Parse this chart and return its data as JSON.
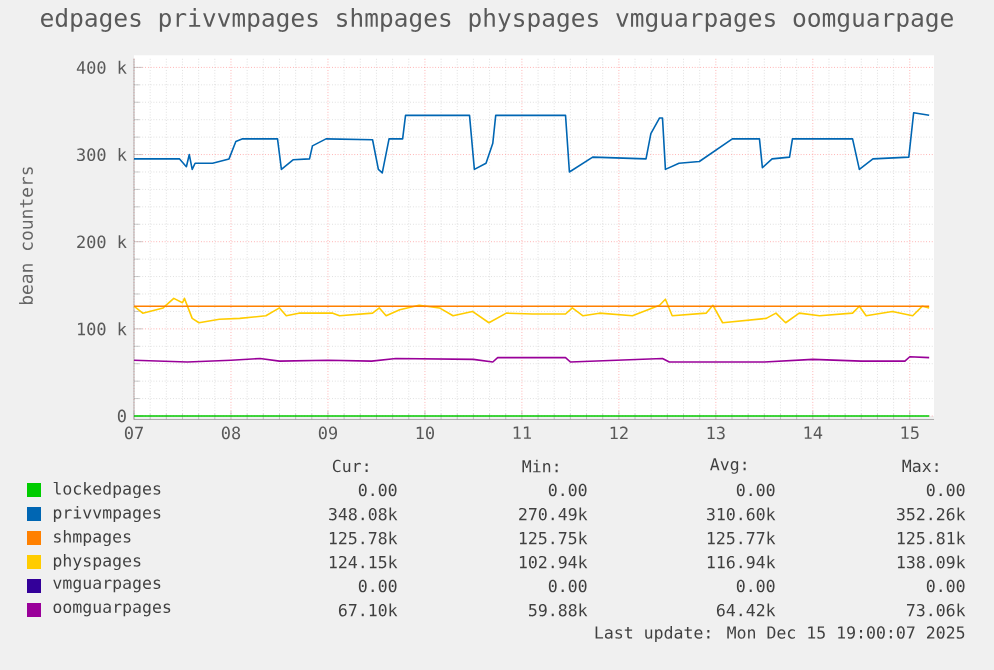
{
  "chart_data": {
    "type": "line",
    "title": "edpages privvmpages shmpages physpages vmguarpages oomguarpage",
    "ylabel": "bean counters",
    "xlim": [
      7,
      15.25
    ],
    "xticks": [
      {
        "value": 7,
        "label": "07"
      },
      {
        "value": 8,
        "label": "08"
      },
      {
        "value": 9,
        "label": "09"
      },
      {
        "value": 10,
        "label": "10"
      },
      {
        "value": 11,
        "label": "11"
      },
      {
        "value": 12,
        "label": "12"
      },
      {
        "value": 13,
        "label": "13"
      },
      {
        "value": 14,
        "label": "14"
      },
      {
        "value": 15,
        "label": "15"
      }
    ],
    "ylim": [
      -4000,
      410000
    ],
    "yticks": [
      0,
      {
        "value": 100000,
        "label": "100 k"
      },
      {
        "value": 200000,
        "label": "200 k"
      },
      {
        "value": 300000,
        "label": "300 k"
      },
      {
        "value": 400000,
        "label": "400 k"
      }
    ],
    "grid": true,
    "legend": "bottom",
    "series": [
      {
        "name": "lockedpages",
        "color": "#00cc00",
        "x": [
          7.0,
          15.2
        ],
        "values": [
          0,
          0
        ]
      },
      {
        "name": "privvmpages",
        "color": "#0066b3",
        "x": [
          7.0,
          7.47,
          7.54,
          7.57,
          7.6,
          7.63,
          7.81,
          7.98,
          8.05,
          8.12,
          8.48,
          8.52,
          8.64,
          8.81,
          8.84,
          8.98,
          9.46,
          9.52,
          9.56,
          9.63,
          9.77,
          9.8,
          10.46,
          10.51,
          10.63,
          10.7,
          10.73,
          11.45,
          11.49,
          11.73,
          12.28,
          12.33,
          12.42,
          12.45,
          12.48,
          12.62,
          12.83,
          13.17,
          13.45,
          13.48,
          13.58,
          13.76,
          13.79,
          14.41,
          14.48,
          14.62,
          14.99,
          15.04,
          15.2
        ],
        "values": [
          295000,
          295000,
          286000,
          300000,
          283000,
          290000,
          290000,
          295000,
          315000,
          318000,
          318000,
          283000,
          294000,
          295000,
          310000,
          318000,
          317000,
          283000,
          279000,
          318000,
          318000,
          345000,
          345000,
          283000,
          290000,
          313000,
          345000,
          345000,
          280000,
          297000,
          295000,
          324000,
          342000,
          342000,
          283000,
          290000,
          292000,
          318000,
          318000,
          285000,
          295000,
          297000,
          318000,
          318000,
          283000,
          295000,
          297000,
          348000,
          345000
        ]
      },
      {
        "name": "shmpages",
        "color": "#ff8000",
        "x": [
          7.0,
          15.2
        ],
        "values": [
          126000,
          126000
        ]
      },
      {
        "name": "physpages",
        "color": "#ffcc00",
        "x": [
          7.0,
          7.09,
          7.3,
          7.41,
          7.5,
          7.52,
          7.6,
          7.67,
          7.88,
          8.09,
          8.36,
          8.5,
          8.57,
          8.7,
          9.05,
          9.12,
          9.46,
          9.53,
          9.6,
          9.74,
          9.94,
          10.15,
          10.29,
          10.49,
          10.66,
          10.84,
          11.11,
          11.45,
          11.52,
          11.63,
          11.8,
          12.14,
          12.42,
          12.48,
          12.55,
          12.9,
          12.97,
          13.07,
          13.52,
          13.62,
          13.72,
          13.86,
          14.07,
          14.41,
          14.48,
          14.55,
          14.82,
          15.03,
          15.13,
          15.2
        ],
        "values": [
          126000,
          118000,
          124000,
          135000,
          130000,
          135000,
          112000,
          107000,
          111000,
          112000,
          115000,
          124000,
          115000,
          118000,
          118000,
          115000,
          118000,
          124000,
          115000,
          122000,
          127000,
          124000,
          115000,
          120000,
          107000,
          118000,
          117000,
          117000,
          124000,
          115000,
          118000,
          115000,
          127000,
          134000,
          115000,
          118000,
          127000,
          107000,
          112000,
          118000,
          107000,
          118000,
          115000,
          118000,
          126000,
          115000,
          120000,
          115000,
          126000,
          124000
        ]
      },
      {
        "name": "vmguarpages",
        "color": "#330099",
        "values": [
          null,
          null
        ]
      },
      {
        "name": "oomguarpages",
        "color": "#990099",
        "x": [
          7.0,
          7.55,
          8.0,
          8.3,
          8.5,
          9.0,
          9.45,
          9.7,
          10.5,
          10.7,
          10.75,
          11.45,
          11.5,
          12.45,
          12.52,
          13.5,
          14.0,
          14.5,
          14.95,
          15.0,
          15.2
        ],
        "values": [
          64000,
          62000,
          64000,
          66000,
          63000,
          64000,
          63000,
          66000,
          65000,
          62000,
          67000,
          67000,
          62000,
          66000,
          62000,
          62000,
          65000,
          63000,
          63000,
          68000,
          67000
        ]
      }
    ],
    "annotations": [
      "Cur:",
      "Min:",
      "Avg:",
      "Max:",
      "0.00",
      "0.00",
      "0.00",
      "0.00",
      "348.08k",
      "270.49k",
      "310.60k",
      "352.26k",
      "125.78k",
      "125.75k",
      "125.77k",
      "125.81k",
      "124.15k",
      "102.94k",
      "116.94k",
      "138.09k",
      "0.00",
      "0.00",
      "0.00",
      "0.00",
      "67.10k",
      "59.88k",
      "64.42k",
      "73.06k",
      "Last update: Mon Dec 15 19:00:07 2025"
    ]
  }
}
